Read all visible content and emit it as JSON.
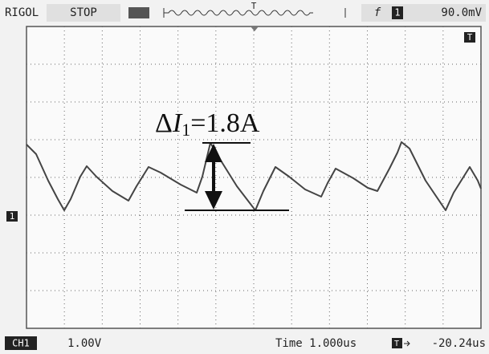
{
  "header": {
    "brand": "RIGOL",
    "status": "STOP",
    "trigger_marker": "T",
    "trigger_edge": "f",
    "channel_icon": "1",
    "trigger_level": "90.0mV"
  },
  "screen": {
    "trigger_position_marker": "T",
    "channel_ground_marker": "1"
  },
  "annotation": {
    "prefix": "Δ",
    "variable": "I",
    "subscript": "1",
    "suffix": "=1.8A"
  },
  "footer": {
    "channel": "CH1",
    "volts_per_div": "1.00V",
    "timebase": "Time 1.000us",
    "trigger_offset_icon": "T",
    "trigger_offset": "-20.24us"
  }
}
